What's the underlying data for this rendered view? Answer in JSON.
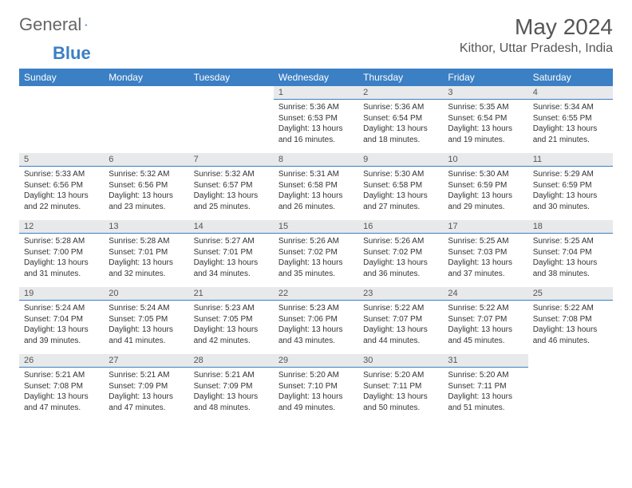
{
  "brand": {
    "word1": "General",
    "word2": "Blue"
  },
  "title": "May 2024",
  "location": "Kithor, Uttar Pradesh, India",
  "colors": {
    "accent": "#3b7fc4",
    "header_row_bg": "#e8e9ea",
    "text": "#333333",
    "muted": "#666666",
    "background": "#ffffff"
  },
  "weekdays": [
    "Sunday",
    "Monday",
    "Tuesday",
    "Wednesday",
    "Thursday",
    "Friday",
    "Saturday"
  ],
  "layout": {
    "first_weekday_index": 3,
    "days_in_month": 31
  },
  "days": [
    {
      "n": 1,
      "sunrise": "5:36 AM",
      "sunset": "6:53 PM",
      "daylight": "13 hours and 16 minutes."
    },
    {
      "n": 2,
      "sunrise": "5:36 AM",
      "sunset": "6:54 PM",
      "daylight": "13 hours and 18 minutes."
    },
    {
      "n": 3,
      "sunrise": "5:35 AM",
      "sunset": "6:54 PM",
      "daylight": "13 hours and 19 minutes."
    },
    {
      "n": 4,
      "sunrise": "5:34 AM",
      "sunset": "6:55 PM",
      "daylight": "13 hours and 21 minutes."
    },
    {
      "n": 5,
      "sunrise": "5:33 AM",
      "sunset": "6:56 PM",
      "daylight": "13 hours and 22 minutes."
    },
    {
      "n": 6,
      "sunrise": "5:32 AM",
      "sunset": "6:56 PM",
      "daylight": "13 hours and 23 minutes."
    },
    {
      "n": 7,
      "sunrise": "5:32 AM",
      "sunset": "6:57 PM",
      "daylight": "13 hours and 25 minutes."
    },
    {
      "n": 8,
      "sunrise": "5:31 AM",
      "sunset": "6:58 PM",
      "daylight": "13 hours and 26 minutes."
    },
    {
      "n": 9,
      "sunrise": "5:30 AM",
      "sunset": "6:58 PM",
      "daylight": "13 hours and 27 minutes."
    },
    {
      "n": 10,
      "sunrise": "5:30 AM",
      "sunset": "6:59 PM",
      "daylight": "13 hours and 29 minutes."
    },
    {
      "n": 11,
      "sunrise": "5:29 AM",
      "sunset": "6:59 PM",
      "daylight": "13 hours and 30 minutes."
    },
    {
      "n": 12,
      "sunrise": "5:28 AM",
      "sunset": "7:00 PM",
      "daylight": "13 hours and 31 minutes."
    },
    {
      "n": 13,
      "sunrise": "5:28 AM",
      "sunset": "7:01 PM",
      "daylight": "13 hours and 32 minutes."
    },
    {
      "n": 14,
      "sunrise": "5:27 AM",
      "sunset": "7:01 PM",
      "daylight": "13 hours and 34 minutes."
    },
    {
      "n": 15,
      "sunrise": "5:26 AM",
      "sunset": "7:02 PM",
      "daylight": "13 hours and 35 minutes."
    },
    {
      "n": 16,
      "sunrise": "5:26 AM",
      "sunset": "7:02 PM",
      "daylight": "13 hours and 36 minutes."
    },
    {
      "n": 17,
      "sunrise": "5:25 AM",
      "sunset": "7:03 PM",
      "daylight": "13 hours and 37 minutes."
    },
    {
      "n": 18,
      "sunrise": "5:25 AM",
      "sunset": "7:04 PM",
      "daylight": "13 hours and 38 minutes."
    },
    {
      "n": 19,
      "sunrise": "5:24 AM",
      "sunset": "7:04 PM",
      "daylight": "13 hours and 39 minutes."
    },
    {
      "n": 20,
      "sunrise": "5:24 AM",
      "sunset": "7:05 PM",
      "daylight": "13 hours and 41 minutes."
    },
    {
      "n": 21,
      "sunrise": "5:23 AM",
      "sunset": "7:05 PM",
      "daylight": "13 hours and 42 minutes."
    },
    {
      "n": 22,
      "sunrise": "5:23 AM",
      "sunset": "7:06 PM",
      "daylight": "13 hours and 43 minutes."
    },
    {
      "n": 23,
      "sunrise": "5:22 AM",
      "sunset": "7:07 PM",
      "daylight": "13 hours and 44 minutes."
    },
    {
      "n": 24,
      "sunrise": "5:22 AM",
      "sunset": "7:07 PM",
      "daylight": "13 hours and 45 minutes."
    },
    {
      "n": 25,
      "sunrise": "5:22 AM",
      "sunset": "7:08 PM",
      "daylight": "13 hours and 46 minutes."
    },
    {
      "n": 26,
      "sunrise": "5:21 AM",
      "sunset": "7:08 PM",
      "daylight": "13 hours and 47 minutes."
    },
    {
      "n": 27,
      "sunrise": "5:21 AM",
      "sunset": "7:09 PM",
      "daylight": "13 hours and 47 minutes."
    },
    {
      "n": 28,
      "sunrise": "5:21 AM",
      "sunset": "7:09 PM",
      "daylight": "13 hours and 48 minutes."
    },
    {
      "n": 29,
      "sunrise": "5:20 AM",
      "sunset": "7:10 PM",
      "daylight": "13 hours and 49 minutes."
    },
    {
      "n": 30,
      "sunrise": "5:20 AM",
      "sunset": "7:11 PM",
      "daylight": "13 hours and 50 minutes."
    },
    {
      "n": 31,
      "sunrise": "5:20 AM",
      "sunset": "7:11 PM",
      "daylight": "13 hours and 51 minutes."
    }
  ],
  "labels": {
    "sunrise": "Sunrise: ",
    "sunset": "Sunset: ",
    "daylight": "Daylight: "
  }
}
